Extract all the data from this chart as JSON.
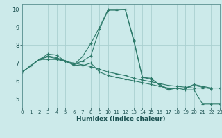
{
  "title": "",
  "xlabel": "Humidex (Indice chaleur)",
  "xlim": [
    0,
    23
  ],
  "ylim": [
    4.5,
    10.3
  ],
  "bg_color": "#cceaea",
  "grid_color": "#aad0d0",
  "line_color": "#2d7a6a",
  "yticks": [
    5,
    6,
    7,
    8,
    9,
    10
  ],
  "lines": [
    {
      "x": [
        0,
        1,
        2,
        3,
        4,
        5,
        6,
        7,
        8,
        9,
        10,
        11,
        12,
        13,
        14,
        15,
        16,
        17,
        18,
        19,
        20,
        21,
        22,
        23
      ],
      "y": [
        6.5,
        6.85,
        7.2,
        7.5,
        7.45,
        7.1,
        7.0,
        6.9,
        6.8,
        6.65,
        6.5,
        6.4,
        6.3,
        6.15,
        6.05,
        5.95,
        5.85,
        5.75,
        5.7,
        5.65,
        5.6,
        5.6,
        5.6,
        5.6
      ]
    },
    {
      "x": [
        0,
        1,
        2,
        3,
        4,
        5,
        6,
        7,
        8,
        9,
        10,
        11,
        12,
        13,
        14,
        15,
        16,
        17,
        18,
        19,
        20,
        21,
        22
      ],
      "y": [
        6.5,
        6.85,
        7.2,
        7.4,
        7.3,
        7.1,
        6.9,
        7.35,
        8.1,
        9.0,
        10.0,
        10.0,
        10.0,
        8.3,
        6.2,
        6.1,
        5.8,
        5.55,
        5.6,
        5.6,
        5.8,
        5.7,
        5.6
      ]
    },
    {
      "x": [
        0,
        1,
        2,
        3,
        4,
        5,
        6,
        7,
        8,
        9,
        10,
        11,
        12,
        13,
        14,
        15,
        16,
        17,
        18,
        19,
        20,
        21,
        22
      ],
      "y": [
        6.5,
        6.85,
        7.2,
        7.35,
        7.25,
        7.1,
        6.95,
        7.1,
        7.4,
        8.9,
        9.95,
        9.95,
        10.0,
        8.2,
        6.2,
        6.15,
        5.75,
        5.5,
        5.6,
        5.6,
        5.75,
        5.65,
        5.55
      ]
    },
    {
      "x": [
        0,
        1,
        2,
        3,
        4,
        5,
        6,
        7,
        8,
        9,
        10,
        11,
        12,
        13,
        14,
        15,
        16,
        17,
        18,
        19,
        20,
        21,
        22,
        23
      ],
      "y": [
        6.5,
        6.85,
        7.2,
        7.2,
        7.2,
        7.1,
        6.9,
        6.85,
        7.0,
        6.5,
        6.3,
        6.2,
        6.1,
        6.0,
        5.9,
        5.8,
        5.7,
        5.6,
        5.6,
        5.5,
        5.5,
        4.7,
        4.7,
        4.7
      ]
    }
  ]
}
